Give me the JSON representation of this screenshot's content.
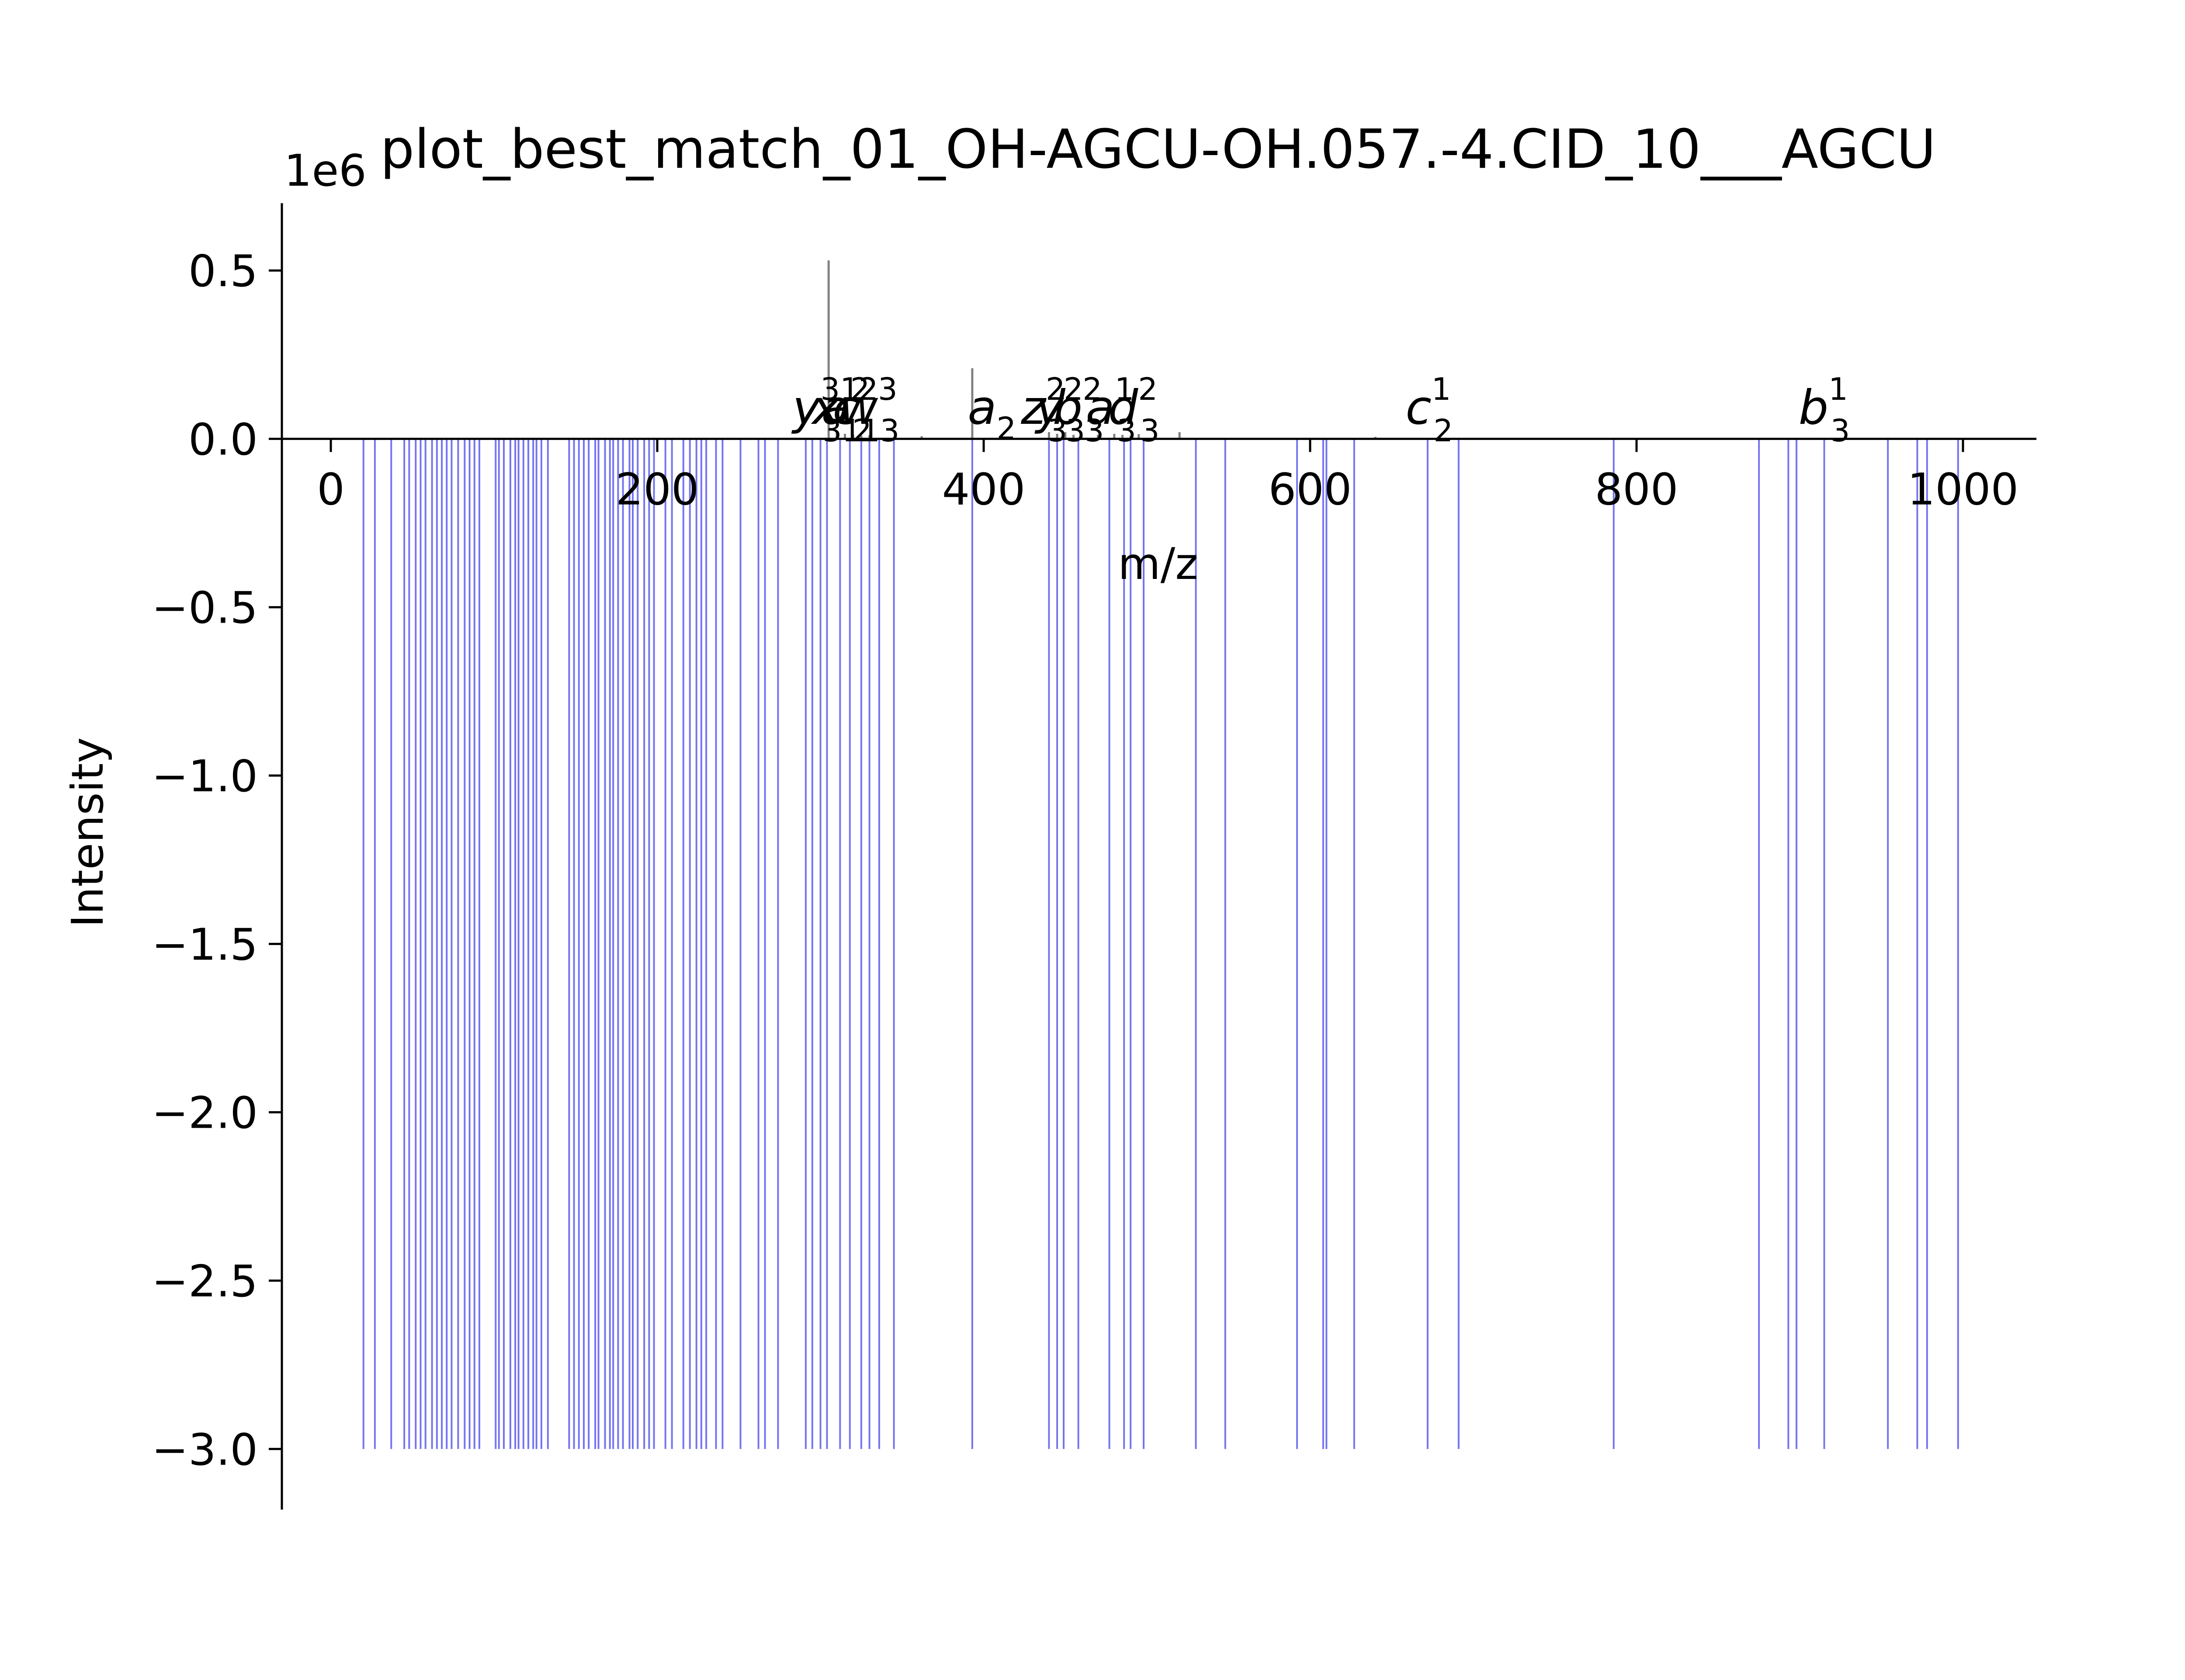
{
  "chart_data": {
    "type": "bar",
    "title": "plot_best_match_01_OH-AGCU-OH.057.-4.CID_10___AGCU",
    "xlabel": "m/z",
    "ylabel": "Intensity",
    "y_offset_label": "1e6",
    "xlim": [
      -30,
      1045
    ],
    "ylim": [
      -3.18,
      0.7
    ],
    "xticks": [
      0,
      200,
      400,
      600,
      800,
      1000
    ],
    "yticks": [
      0.5,
      0.0,
      -0.5,
      -1.0,
      -1.5,
      -2.0,
      -2.5,
      -3.0
    ],
    "grid": false,
    "legend": "none",
    "colors": {
      "observed": "#808080",
      "theoretical": "#5c5cf0",
      "axis": "#000000"
    },
    "series": [
      {
        "name": "observed",
        "x": [
          305,
          310,
          315,
          320,
          325,
          330,
          362,
          393,
          440,
          445,
          450,
          455,
          460,
          470,
          480,
          485,
          490,
          495,
          520,
          640
        ],
        "values": [
          0.53,
          0.02,
          0.015,
          0.012,
          0.01,
          0.011,
          0.008,
          0.21,
          0.02,
          0.015,
          0.02,
          0.012,
          0.01,
          0.012,
          0.015,
          0.012,
          0.01,
          0.014,
          0.02,
          0.006
        ]
      },
      {
        "name": "theoretical",
        "x": [
          20,
          27,
          37,
          45,
          48,
          52,
          55,
          58,
          62,
          65,
          68,
          71,
          74,
          78,
          82,
          85,
          88,
          91,
          101,
          103,
          106,
          110,
          113,
          115,
          118,
          121,
          124,
          126,
          129,
          133,
          146,
          149,
          152,
          155,
          158,
          162,
          164,
          168,
          171,
          173,
          176,
          179,
          183,
          185,
          188,
          192,
          195,
          198,
          205,
          209,
          216,
          220,
          224,
          227,
          230,
          236,
          240,
          251,
          262,
          266,
          274,
          291,
          295,
          300,
          304,
          312,
          318,
          325,
          330,
          336,
          345,
          393,
          440,
          445,
          449,
          458,
          477,
          486,
          490,
          498,
          530,
          548,
          592,
          608,
          610,
          627,
          672,
          691,
          786,
          875,
          893,
          898,
          915,
          954,
          972,
          978,
          997
        ],
        "values": [
          -3,
          -3,
          -3,
          -3,
          -3,
          -3,
          -3,
          -3,
          -3,
          -3,
          -3,
          -3,
          -3,
          -3,
          -3,
          -3,
          -3,
          -3,
          -3,
          -3,
          -3,
          -3,
          -3,
          -3,
          -3,
          -3,
          -3,
          -3,
          -3,
          -3,
          -3,
          -3,
          -3,
          -3,
          -3,
          -3,
          -3,
          -3,
          -3,
          -3,
          -3,
          -3,
          -3,
          -3,
          -3,
          -3,
          -3,
          -3,
          -3,
          -3,
          -3,
          -3,
          -3,
          -3,
          -3,
          -3,
          -3,
          -3,
          -3,
          -3,
          -3,
          -3,
          -3,
          -3,
          -3,
          -3,
          -3,
          -3,
          -3,
          -3,
          -3,
          -3,
          -3,
          -3,
          -3,
          -3,
          -3,
          -3,
          -3,
          -3,
          -3,
          -3,
          -3,
          -3,
          -3,
          -3,
          -3,
          -3,
          -3,
          -3,
          -3,
          -3,
          -3,
          -3,
          -3,
          -3,
          -3
        ]
      }
    ],
    "annotations": [
      {
        "base": "y",
        "sup": "3",
        "sub": "3",
        "x": 298,
        "y": 0.045
      },
      {
        "base": "x",
        "sup": "1",
        "sub": "1",
        "x": 310,
        "y": 0.045
      },
      {
        "base": "a",
        "sup": "2",
        "sub": "2",
        "x": 316,
        "y": 0.045
      },
      {
        "base": "c",
        "sup": "2",
        "sub": "1",
        "x": 322,
        "y": 0.045
      },
      {
        "base": "w",
        "sup": "3",
        "sub": "3",
        "x": 330,
        "y": 0.045
      },
      {
        "base": "a",
        "sup": "",
        "sub": "2",
        "x": 405,
        "y": 0.045
      },
      {
        "base": "z",
        "sup": "2",
        "sub": "3",
        "x": 437,
        "y": 0.045
      },
      {
        "base": "y",
        "sup": "2",
        "sub": "3",
        "x": 447,
        "y": 0.045
      },
      {
        "base": "b",
        "sup": "2",
        "sub": "3",
        "x": 458,
        "y": 0.045
      },
      {
        "base": "a",
        "sup": "1",
        "sub": "3",
        "x": 478,
        "y": 0.045
      },
      {
        "base": "d",
        "sup": "2",
        "sub": "3",
        "x": 492,
        "y": 0.045
      },
      {
        "base": "c",
        "sup": "1",
        "sub": "2",
        "x": 673,
        "y": 0.045
      },
      {
        "base": "b",
        "sup": "1",
        "sub": "3",
        "x": 915,
        "y": 0.045
      }
    ]
  }
}
